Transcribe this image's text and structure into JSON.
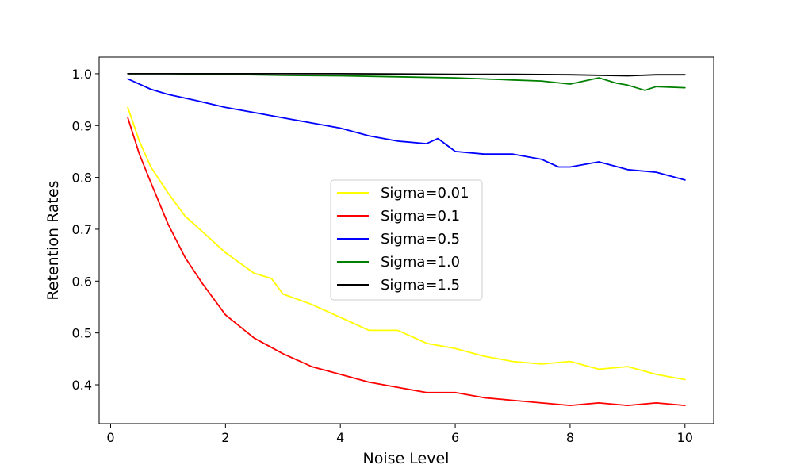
{
  "chart_data": {
    "type": "line",
    "title": "",
    "xlabel": "Noise Level",
    "ylabel": "Retention Rates",
    "xlim": [
      -0.2,
      10.5
    ],
    "ylim": [
      0.325,
      1.032
    ],
    "xticks": [
      0,
      2,
      4,
      6,
      8,
      10
    ],
    "xtick_labels": [
      "0",
      "2",
      "4",
      "6",
      "8",
      "10"
    ],
    "yticks": [
      0.4,
      0.5,
      0.6,
      0.7,
      0.8,
      0.9,
      1.0
    ],
    "ytick_labels": [
      "0.4",
      "0.5",
      "0.6",
      "0.7",
      "0.8",
      "0.9",
      "1.0"
    ],
    "grid": false,
    "legend_position": "center",
    "series": [
      {
        "name": "Sigma=0.01",
        "color": "#ffff00",
        "x": [
          0.3,
          0.5,
          0.7,
          1.0,
          1.3,
          1.6,
          2.0,
          2.5,
          2.8,
          3.0,
          3.5,
          4.0,
          4.5,
          5.0,
          5.5,
          6.0,
          6.5,
          7.0,
          7.5,
          8.0,
          8.5,
          9.0,
          9.5,
          10.0
        ],
        "y": [
          0.935,
          0.87,
          0.82,
          0.77,
          0.725,
          0.695,
          0.655,
          0.615,
          0.605,
          0.575,
          0.555,
          0.53,
          0.505,
          0.505,
          0.48,
          0.47,
          0.455,
          0.445,
          0.44,
          0.445,
          0.43,
          0.435,
          0.42,
          0.41
        ]
      },
      {
        "name": "Sigma=0.1",
        "color": "#ff0000",
        "x": [
          0.3,
          0.5,
          0.7,
          1.0,
          1.3,
          1.6,
          2.0,
          2.5,
          3.0,
          3.5,
          4.0,
          4.5,
          5.0,
          5.5,
          6.0,
          6.5,
          7.0,
          7.5,
          8.0,
          8.5,
          9.0,
          9.5,
          10.0
        ],
        "y": [
          0.915,
          0.845,
          0.79,
          0.71,
          0.645,
          0.595,
          0.535,
          0.49,
          0.46,
          0.435,
          0.42,
          0.405,
          0.395,
          0.385,
          0.385,
          0.375,
          0.37,
          0.365,
          0.36,
          0.365,
          0.36,
          0.365,
          0.36
        ]
      },
      {
        "name": "Sigma=0.5",
        "color": "#0000ff",
        "x": [
          0.3,
          0.7,
          1.0,
          1.5,
          2.0,
          2.5,
          3.0,
          3.5,
          4.0,
          4.5,
          5.0,
          5.5,
          5.7,
          6.0,
          6.5,
          7.0,
          7.5,
          7.8,
          8.0,
          8.5,
          9.0,
          9.5,
          10.0
        ],
        "y": [
          0.99,
          0.97,
          0.96,
          0.948,
          0.935,
          0.925,
          0.915,
          0.905,
          0.895,
          0.88,
          0.87,
          0.865,
          0.875,
          0.85,
          0.845,
          0.845,
          0.835,
          0.82,
          0.82,
          0.83,
          0.815,
          0.81,
          0.795
        ]
      },
      {
        "name": "Sigma=1.0",
        "color": "#008000",
        "x": [
          0.3,
          1.0,
          2.0,
          3.0,
          4.0,
          5.0,
          6.0,
          7.0,
          7.5,
          8.0,
          8.5,
          8.8,
          9.0,
          9.3,
          9.5,
          10.0
        ],
        "y": [
          1.0,
          1.0,
          0.999,
          0.997,
          0.996,
          0.994,
          0.992,
          0.988,
          0.986,
          0.98,
          0.992,
          0.982,
          0.978,
          0.968,
          0.975,
          0.973
        ]
      },
      {
        "name": "Sigma=1.5",
        "color": "#000000",
        "x": [
          0.3,
          2.0,
          4.0,
          6.0,
          7.0,
          8.0,
          9.0,
          9.5,
          10.0
        ],
        "y": [
          1.0,
          1.0,
          1.0,
          0.999,
          0.999,
          0.998,
          0.996,
          0.998,
          0.998
        ]
      }
    ]
  }
}
